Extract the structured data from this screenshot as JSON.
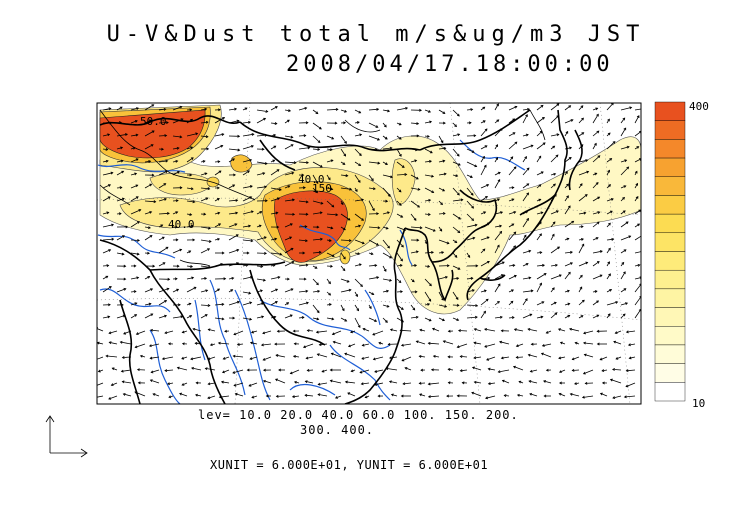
{
  "title": {
    "line1": "U-V&Dust total m/s&ug/m3 JST",
    "line2": "2008/04/17.18:00:00"
  },
  "levels": {
    "line1": "lev= 10.0 20.0 40.0 60.0 100. 150. 200.",
    "line2": "300. 400."
  },
  "units": "XUNIT = 6.000E+01, YUNIT = 6.000E+01",
  "colorbar": {
    "max_label": "400",
    "min_label": "10",
    "colors": [
      "#e8511f",
      "#ee6c23",
      "#f4882a",
      "#f7a230",
      "#f9b83a",
      "#fbcc44",
      "#fcdc52",
      "#fde465",
      "#feeb7a",
      "#fef08f",
      "#fef4a3",
      "#fff7b6",
      "#fffac8",
      "#fffcd8",
      "#fffde6",
      "#ffffff"
    ]
  },
  "contour_labels": [
    "50.0",
    "40.0",
    "150",
    "40.0"
  ]
}
